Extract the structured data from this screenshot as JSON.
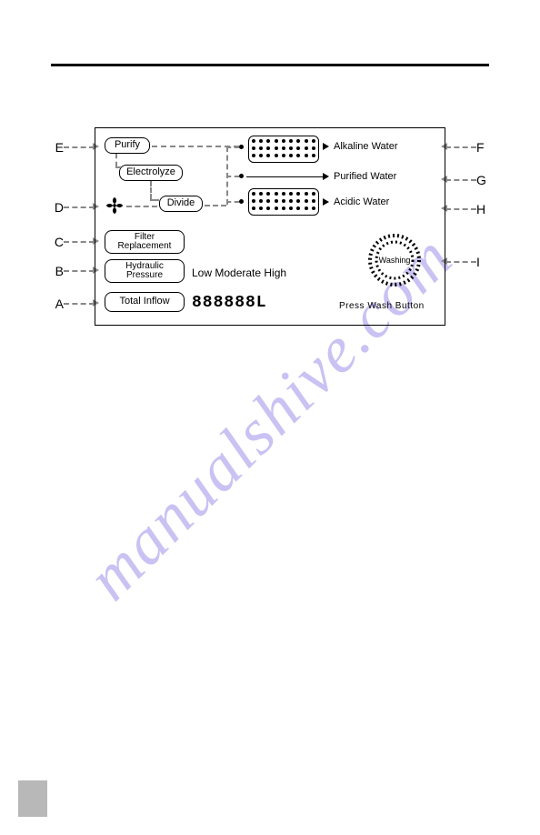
{
  "watermark": "manualshive.com",
  "callouts": {
    "A": "A",
    "B": "B",
    "C": "C",
    "D": "D",
    "E": "E",
    "F": "F",
    "G": "G",
    "H": "H",
    "I": "I"
  },
  "panel": {
    "purify": "Purify",
    "electrolyze": "Electrolyze",
    "divide": "Divide",
    "filter_replacement": "Filter\nReplacement",
    "hydraulic_pressure": "Hydraulic\nPressure",
    "total_inflow": "Total Inflow",
    "pressure_levels": "Low Moderate High",
    "washing": "Washing",
    "press_wash": "Press Wash Button",
    "segment": "888888L",
    "alkaline": "Alkaline Water",
    "purified": "Purified Water",
    "acidic": "Acidic Water"
  },
  "colors": {
    "border": "#000000",
    "dash": "#888888",
    "watermark": "rgba(100,80,220,0.35)",
    "pagebox": "#b8b8b8"
  }
}
